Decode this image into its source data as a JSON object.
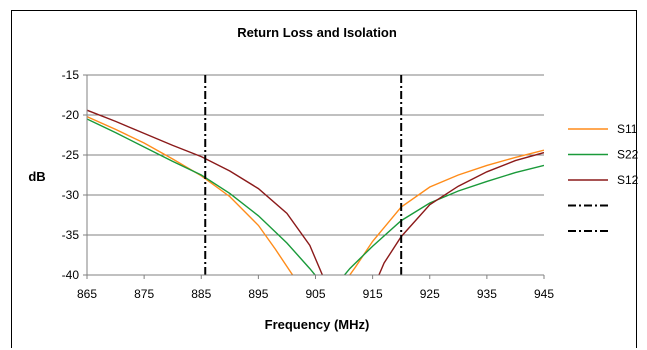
{
  "chart_data": {
    "type": "line",
    "title": "Return Loss and Isolation",
    "xlabel": "Frequency (MHz)",
    "ylabel": "dB",
    "xlim": [
      865,
      945
    ],
    "ylim": [
      -40,
      -15
    ],
    "x_ticks": [
      865,
      875,
      885,
      895,
      905,
      915,
      925,
      935,
      945
    ],
    "y_ticks": [
      -15,
      -20,
      -25,
      -30,
      -35,
      -40
    ],
    "grid": "horizontal",
    "legend_position": "right",
    "series": [
      {
        "name": "S11",
        "color": "#FF8C1A",
        "x": [
          865,
          870,
          875,
          880,
          885,
          890,
          895,
          898,
          901,
          901.5
        ],
        "y": [
          -20.2,
          -21.8,
          -23.5,
          -25.5,
          -27.6,
          -30.2,
          -33.8,
          -36.8,
          -40,
          -40.5
        ],
        "x2": [
          910.5,
          912,
          915,
          920,
          925,
          930,
          935,
          940,
          945
        ],
        "y2": [
          -40.5,
          -39,
          -35.8,
          -31.5,
          -29,
          -27.5,
          -26.3,
          -25.3,
          -24.4
        ]
      },
      {
        "name": "S22",
        "color": "#1A9A3A",
        "x": [
          865,
          870,
          875,
          880,
          885,
          890,
          895,
          900,
          904,
          905.5
        ],
        "y": [
          -20.5,
          -22.2,
          -24,
          -25.8,
          -27.5,
          -29.8,
          -32.6,
          -36,
          -39.2,
          -40.5
        ],
        "x2": [
          909.5,
          911,
          915,
          920,
          925,
          930,
          935,
          940,
          945
        ],
        "y2": [
          -40.5,
          -39.2,
          -36.4,
          -33.2,
          -31,
          -29.5,
          -28.3,
          -27.2,
          -26.3
        ]
      },
      {
        "name": "S12",
        "color": "#8B1A1A",
        "x": [
          865,
          870,
          875,
          880,
          885,
          890,
          895,
          900,
          904,
          906.5
        ],
        "y": [
          -19.4,
          -20.8,
          -22.3,
          -23.8,
          -25.2,
          -27,
          -29.2,
          -32.3,
          -36.3,
          -40.5
        ],
        "x2": [
          915.8,
          917,
          920,
          925,
          930,
          935,
          940,
          945
        ],
        "y2": [
          -40.5,
          -38.5,
          -35.2,
          -31.2,
          -28.9,
          -27.1,
          -25.7,
          -24.7
        ]
      }
    ],
    "vertical_lines": [
      {
        "x": 885.7,
        "style": "dash-dot",
        "color": "#000000"
      },
      {
        "x": 920,
        "style": "dash-dot",
        "color": "#000000"
      }
    ],
    "legend": [
      {
        "label": "S11",
        "color": "#FF8C1A",
        "style": "solid"
      },
      {
        "label": "S22",
        "color": "#1A9A3A",
        "style": "solid"
      },
      {
        "label": "S12",
        "color": "#8B1A1A",
        "style": "solid"
      },
      {
        "label": "",
        "color": "#000000",
        "style": "dash-dot"
      },
      {
        "label": "",
        "color": "#000000",
        "style": "dash-dot"
      }
    ]
  }
}
